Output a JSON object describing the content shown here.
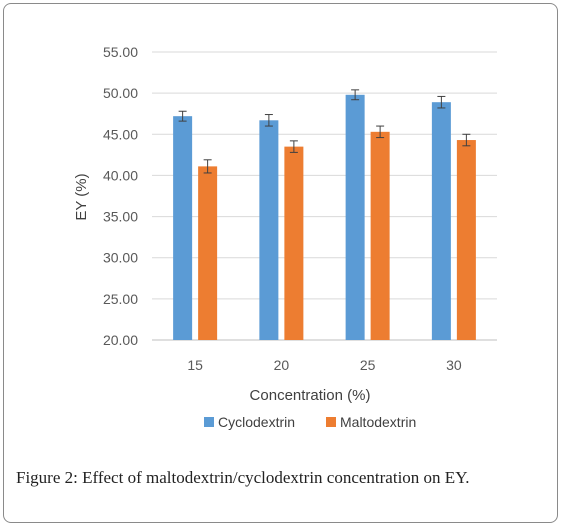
{
  "chart_data": {
    "type": "bar",
    "categories": [
      "15",
      "20",
      "25",
      "30"
    ],
    "series": [
      {
        "name": "Cyclodextrin",
        "color": "#5B9BD5",
        "values": [
          47.2,
          46.7,
          49.8,
          48.9
        ],
        "errors": [
          0.6,
          0.7,
          0.6,
          0.7
        ]
      },
      {
        "name": "Maltodextrin",
        "color": "#ED7D31",
        "values": [
          41.1,
          43.5,
          45.3,
          44.3
        ],
        "errors": [
          0.8,
          0.7,
          0.7,
          0.7
        ]
      }
    ],
    "title": "",
    "xlabel": "Concentration (%)",
    "ylabel": "EY (%)",
    "ylim": [
      20,
      55
    ],
    "yticks": [
      "20.00",
      "25.00",
      "30.00",
      "35.00",
      "40.00",
      "45.00",
      "50.00",
      "55.00"
    ],
    "grid": true,
    "legend_position": "bottom"
  },
  "caption": {
    "label": "Figure 2:",
    "text": " Effect of maltodextrin/cyclodextrin concentration on EY."
  }
}
